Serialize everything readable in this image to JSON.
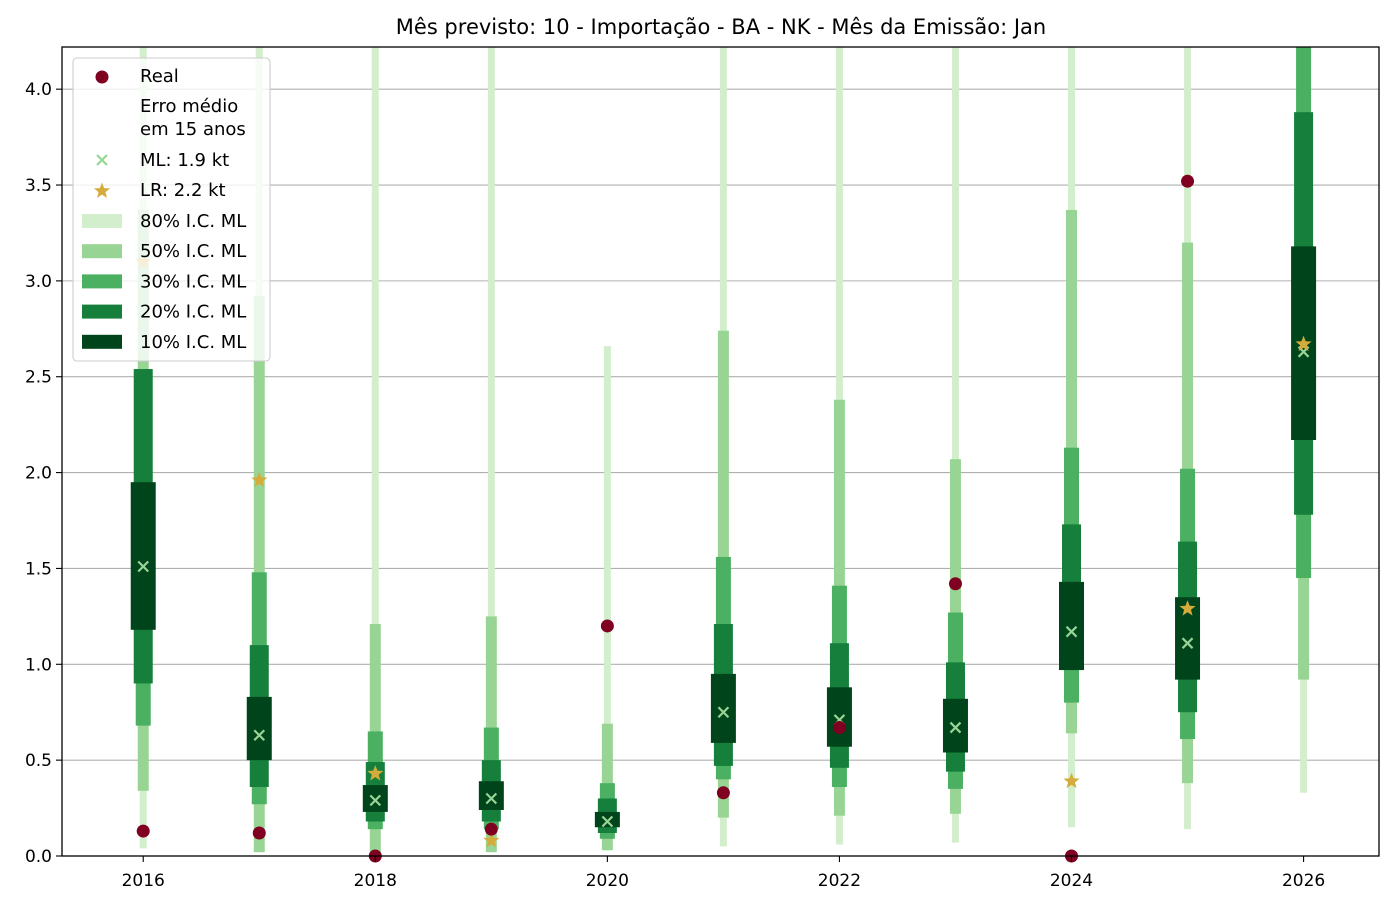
{
  "chart_data": {
    "type": "interval-range",
    "title": "Mês previsto: 10 - Importação - BA - NK - Mês da Emissão: Jan",
    "xlabel": "",
    "ylabel": "",
    "xlim": [
      2015.3,
      2026.65
    ],
    "ylim": [
      0,
      4.22
    ],
    "x_ticks": [
      2016,
      2018,
      2020,
      2022,
      2024,
      2026
    ],
    "y_ticks": [
      0.0,
      0.5,
      1.0,
      1.5,
      2.0,
      2.5,
      3.0,
      3.5,
      4.0
    ],
    "y_tick_labels": [
      "0.0",
      "0.5",
      "1.0",
      "1.5",
      "2.0",
      "2.5",
      "3.0",
      "3.5",
      "4.0"
    ],
    "grid": "horizontal",
    "legend_position": "top-left",
    "years": [
      2016,
      2017,
      2018,
      2019,
      2020,
      2021,
      2022,
      2023,
      2024,
      2025,
      2026
    ],
    "intervals": [
      {
        "name": "80% I.C. ML",
        "color": "#d3eecd",
        "low": [
          0.04,
          0.02,
          0.0,
          0.02,
          0.03,
          0.05,
          0.06,
          0.07,
          0.15,
          0.14,
          0.33
        ],
        "high": [
          4.22,
          4.22,
          4.22,
          4.22,
          2.66,
          4.22,
          4.22,
          4.22,
          4.22,
          4.22,
          4.22
        ]
      },
      {
        "name": "50% I.C. ML",
        "color": "#98d594",
        "low": [
          0.34,
          0.02,
          0.0,
          0.02,
          0.03,
          0.2,
          0.21,
          0.22,
          0.64,
          0.38,
          0.92
        ],
        "high": [
          3.37,
          2.92,
          1.21,
          1.25,
          0.69,
          2.74,
          2.38,
          2.07,
          3.37,
          3.2,
          4.22
        ]
      },
      {
        "name": "30% I.C. ML",
        "color": "#4bb062",
        "low": [
          0.68,
          0.27,
          0.14,
          0.14,
          0.09,
          0.4,
          0.36,
          0.35,
          0.8,
          0.61,
          1.45
        ],
        "high": [
          2.54,
          1.48,
          0.65,
          0.67,
          0.38,
          1.56,
          1.41,
          1.27,
          2.13,
          2.02,
          4.22
        ]
      },
      {
        "name": "20% I.C. ML",
        "color": "#157f3b",
        "low": [
          0.9,
          0.36,
          0.18,
          0.18,
          0.12,
          0.47,
          0.46,
          0.44,
          0.97,
          0.75,
          1.78
        ],
        "high": [
          2.54,
          1.1,
          0.49,
          0.5,
          0.3,
          1.21,
          1.11,
          1.01,
          1.73,
          1.64,
          3.88
        ]
      },
      {
        "name": "10% I.C. ML",
        "color": "#00441b",
        "low": [
          1.18,
          0.5,
          0.23,
          0.24,
          0.15,
          0.59,
          0.57,
          0.54,
          0.97,
          0.92,
          2.17
        ],
        "high": [
          1.95,
          0.83,
          0.37,
          0.39,
          0.23,
          0.95,
          0.88,
          0.82,
          1.43,
          1.35,
          3.18
        ]
      }
    ],
    "series": [
      {
        "name": "Real",
        "marker": "circle",
        "color": "#7f0020",
        "values": [
          0.13,
          0.12,
          0.0,
          0.14,
          1.2,
          0.33,
          0.67,
          1.42,
          0.0,
          3.52,
          null
        ]
      },
      {
        "name": "ML: 1.9 kt",
        "marker": "x",
        "color": "#98d594",
        "values": [
          1.51,
          0.63,
          0.29,
          0.3,
          0.18,
          0.75,
          0.71,
          0.67,
          1.17,
          1.11,
          2.63
        ]
      },
      {
        "name": "LR: 2.2 kt",
        "marker": "star",
        "color": "#d4ac3b",
        "values": [
          3.1,
          1.96,
          0.43,
          0.08,
          null,
          null,
          null,
          null,
          0.39,
          1.29,
          2.67
        ]
      }
    ],
    "legend_note": "Erro médio\nem 15 anos"
  }
}
